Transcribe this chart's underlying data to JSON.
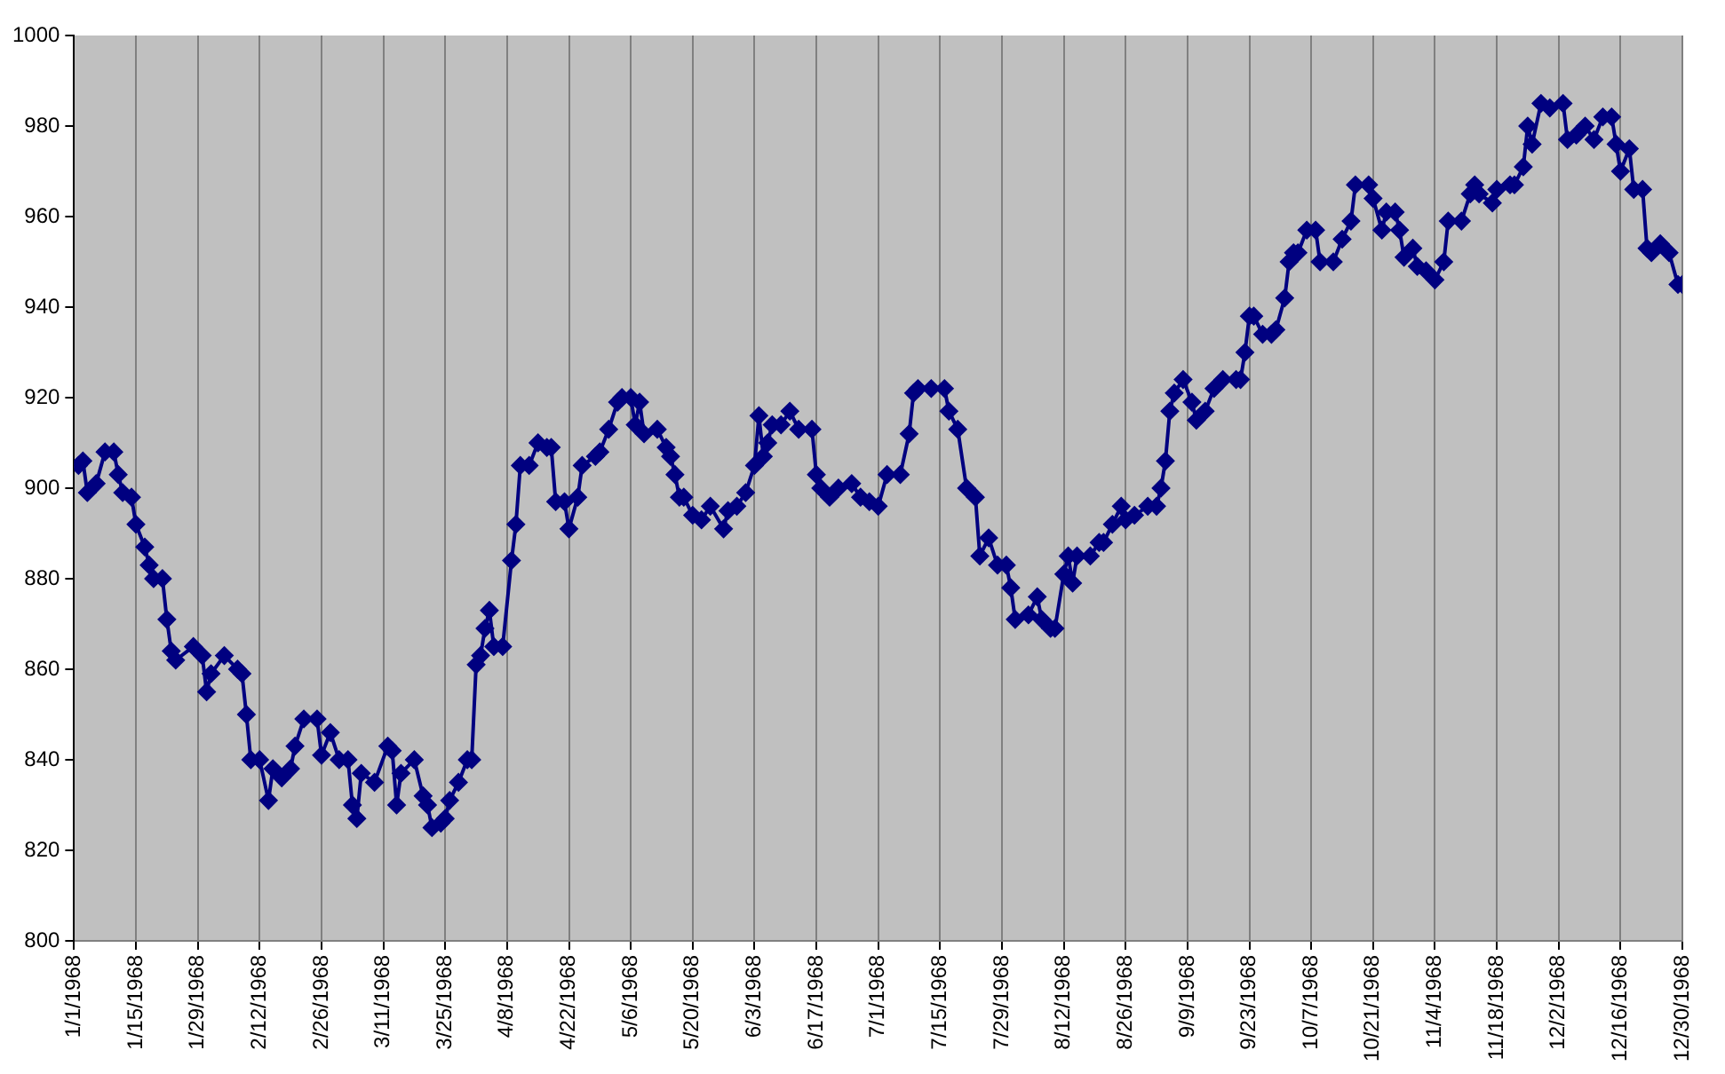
{
  "chart_data": {
    "type": "line",
    "grid": "x",
    "marker": "diamond",
    "line_style": "solid",
    "xlim": [
      "1968-01-01",
      "1968-12-30"
    ],
    "xticks": [
      {
        "value": "1968-01-01",
        "label": "1/1/1968"
      },
      {
        "value": "1968-01-15",
        "label": "1/15/1968"
      },
      {
        "value": "1968-01-29",
        "label": "1/29/1968"
      },
      {
        "value": "1968-02-12",
        "label": "2/12/1968"
      },
      {
        "value": "1968-02-26",
        "label": "2/26/1968"
      },
      {
        "value": "1968-03-11",
        "label": "3/11/1968"
      },
      {
        "value": "1968-03-25",
        "label": "3/25/1968"
      },
      {
        "value": "1968-04-08",
        "label": "4/8/1968"
      },
      {
        "value": "1968-04-22",
        "label": "4/22/1968"
      },
      {
        "value": "1968-05-06",
        "label": "5/6/1968"
      },
      {
        "value": "1968-05-20",
        "label": "5/20/1968"
      },
      {
        "value": "1968-06-03",
        "label": "6/3/1968"
      },
      {
        "value": "1968-06-17",
        "label": "6/17/1968"
      },
      {
        "value": "1968-07-01",
        "label": "7/1/1968"
      },
      {
        "value": "1968-07-15",
        "label": "7/15/1968"
      },
      {
        "value": "1968-07-29",
        "label": "7/29/1968"
      },
      {
        "value": "1968-08-12",
        "label": "8/12/1968"
      },
      {
        "value": "1968-08-26",
        "label": "8/26/1968"
      },
      {
        "value": "1968-09-09",
        "label": "9/9/1968"
      },
      {
        "value": "1968-09-23",
        "label": "9/23/1968"
      },
      {
        "value": "1968-10-07",
        "label": "10/7/1968"
      },
      {
        "value": "1968-10-21",
        "label": "10/21/1968"
      },
      {
        "value": "1968-11-04",
        "label": "11/4/1968"
      },
      {
        "value": "1968-11-18",
        "label": "11/18/1968"
      },
      {
        "value": "1968-12-02",
        "label": "12/2/1968"
      },
      {
        "value": "1968-12-16",
        "label": "12/16/1968"
      },
      {
        "value": "1968-12-30",
        "label": "12/30/1968"
      }
    ],
    "ylim": [
      800,
      1000
    ],
    "yticks": [
      800,
      820,
      840,
      860,
      880,
      900,
      920,
      940,
      960,
      980,
      1000
    ],
    "x": [
      "1968-01-02",
      "1968-01-03",
      "1968-01-04",
      "1968-01-06",
      "1968-01-08",
      "1968-01-10",
      "1968-01-11",
      "1968-01-12",
      "1968-01-14",
      "1968-01-15",
      "1968-01-17",
      "1968-01-18",
      "1968-01-19",
      "1968-01-21",
      "1968-01-22",
      "1968-01-23",
      "1968-01-24",
      "1968-01-28",
      "1968-01-30",
      "1968-01-31",
      "1968-02-01",
      "1968-02-04",
      "1968-02-07",
      "1968-02-08",
      "1968-02-09",
      "1968-02-10",
      "1968-02-12",
      "1968-02-14",
      "1968-02-15",
      "1968-02-17",
      "1968-02-19",
      "1968-02-20",
      "1968-02-22",
      "1968-02-25",
      "1968-02-26",
      "1968-02-28",
      "1968-03-01",
      "1968-03-03",
      "1968-03-04",
      "1968-03-05",
      "1968-03-06",
      "1968-03-09",
      "1968-03-12",
      "1968-03-13",
      "1968-03-14",
      "1968-03-15",
      "1968-03-18",
      "1968-03-20",
      "1968-03-21",
      "1968-03-22",
      "1968-03-24",
      "1968-03-25",
      "1968-03-26",
      "1968-03-28",
      "1968-03-30",
      "1968-03-31",
      "1968-04-01",
      "1968-04-02",
      "1968-04-03",
      "1968-04-04",
      "1968-04-05",
      "1968-04-07",
      "1968-04-09",
      "1968-04-10",
      "1968-04-11",
      "1968-04-13",
      "1968-04-15",
      "1968-04-17",
      "1968-04-18",
      "1968-04-19",
      "1968-04-21",
      "1968-04-22",
      "1968-04-24",
      "1968-04-25",
      "1968-04-28",
      "1968-04-29",
      "1968-05-01",
      "1968-05-03",
      "1968-05-04",
      "1968-05-06",
      "1968-05-07",
      "1968-05-08",
      "1968-05-09",
      "1968-05-12",
      "1968-05-14",
      "1968-05-15",
      "1968-05-16",
      "1968-05-17",
      "1968-05-18",
      "1968-05-20",
      "1968-05-22",
      "1968-05-24",
      "1968-05-27",
      "1968-05-28",
      "1968-05-30",
      "1968-06-01",
      "1968-06-03",
      "1968-06-04",
      "1968-06-05",
      "1968-06-06",
      "1968-06-07",
      "1968-06-09",
      "1968-06-11",
      "1968-06-13",
      "1968-06-16",
      "1968-06-17",
      "1968-06-18",
      "1968-06-20",
      "1968-06-22",
      "1968-06-25",
      "1968-06-27",
      "1968-06-29",
      "1968-07-01",
      "1968-07-03",
      "1968-07-06",
      "1968-07-08",
      "1968-07-09",
      "1968-07-10",
      "1968-07-13",
      "1968-07-16",
      "1968-07-17",
      "1968-07-19",
      "1968-07-21",
      "1968-07-23",
      "1968-07-24",
      "1968-07-26",
      "1968-07-28",
      "1968-07-30",
      "1968-07-31",
      "1968-08-01",
      "1968-08-04",
      "1968-08-06",
      "1968-08-07",
      "1968-08-09",
      "1968-08-10",
      "1968-08-12",
      "1968-08-13",
      "1968-08-14",
      "1968-08-15",
      "1968-08-18",
      "1968-08-20",
      "1968-08-21",
      "1968-08-23",
      "1968-08-25",
      "1968-08-26",
      "1968-08-28",
      "1968-08-31",
      "1968-09-02",
      "1968-09-03",
      "1968-09-04",
      "1968-09-05",
      "1968-09-06",
      "1968-09-08",
      "1968-09-10",
      "1968-09-11",
      "1968-09-13",
      "1968-09-15",
      "1968-09-17",
      "1968-09-20",
      "1968-09-21",
      "1968-09-22",
      "1968-09-23",
      "1968-09-24",
      "1968-09-26",
      "1968-09-28",
      "1968-09-29",
      "1968-10-01",
      "1968-10-02",
      "1968-10-03",
      "1968-10-04",
      "1968-10-06",
      "1968-10-08",
      "1968-10-09",
      "1968-10-12",
      "1968-10-14",
      "1968-10-16",
      "1968-10-17",
      "1968-10-20",
      "1968-10-21",
      "1968-10-23",
      "1968-10-24",
      "1968-10-26",
      "1968-10-27",
      "1968-10-28",
      "1968-10-30",
      "1968-10-31",
      "1968-11-02",
      "1968-11-04",
      "1968-11-06",
      "1968-11-07",
      "1968-11-10",
      "1968-11-12",
      "1968-11-13",
      "1968-11-14",
      "1968-11-17",
      "1968-11-18",
      "1968-11-21",
      "1968-11-22",
      "1968-11-24",
      "1968-11-25",
      "1968-11-26",
      "1968-11-28",
      "1968-11-30",
      "1968-12-03",
      "1968-12-04",
      "1968-12-06",
      "1968-12-08",
      "1968-12-10",
      "1968-12-12",
      "1968-12-14",
      "1968-12-15",
      "1968-12-16",
      "1968-12-18",
      "1968-12-19",
      "1968-12-21",
      "1968-12-22",
      "1968-12-23",
      "1968-12-25",
      "1968-12-27",
      "1968-12-29",
      "1968-12-30"
    ],
    "series": [
      {
        "color": "#000080",
        "values": [
          905,
          906,
          899,
          901,
          908,
          908,
          903,
          899,
          898,
          892,
          887,
          883,
          880,
          880,
          871,
          864,
          862,
          865,
          863,
          855,
          859,
          863,
          860,
          859,
          850,
          840,
          840,
          831,
          838,
          836,
          838,
          843,
          849,
          849,
          841,
          846,
          840,
          840,
          830,
          827,
          837,
          835,
          843,
          842,
          830,
          837,
          840,
          832,
          830,
          825,
          826,
          827,
          831,
          835,
          840,
          840,
          861,
          863,
          869,
          873,
          865,
          865,
          884,
          892,
          905,
          905,
          910,
          909,
          909,
          897,
          897,
          891,
          898,
          905,
          907,
          908,
          913,
          919,
          920,
          920,
          914,
          919,
          912,
          913,
          909,
          907,
          903,
          898,
          898,
          894,
          893,
          896,
          891,
          895,
          896,
          899,
          905,
          916,
          907,
          910,
          914,
          914,
          917,
          913,
          913,
          903,
          900,
          898,
          900,
          901,
          898,
          897,
          896,
          903,
          903,
          912,
          921,
          922,
          922,
          922,
          917,
          913,
          900,
          898,
          885,
          889,
          883,
          883,
          878,
          871,
          872,
          876,
          871,
          869,
          869,
          881,
          885,
          879,
          885,
          885,
          888,
          888,
          892,
          896,
          893,
          894,
          896,
          896,
          900,
          906,
          917,
          921,
          924,
          919,
          915,
          917,
          922,
          924,
          924,
          924,
          930,
          938,
          938,
          934,
          934,
          935,
          942,
          950,
          952,
          952,
          957,
          957,
          950,
          950,
          955,
          959,
          967,
          967,
          964,
          957,
          961,
          961,
          957,
          951,
          953,
          949,
          948,
          946,
          950,
          959,
          959,
          965,
          967,
          965,
          963,
          966,
          967,
          967,
          971,
          980,
          976,
          985,
          984,
          985,
          977,
          978,
          980,
          977,
          982,
          982,
          976,
          970,
          975,
          966,
          966,
          953,
          952,
          954,
          952,
          945,
          945
        ]
      }
    ]
  }
}
